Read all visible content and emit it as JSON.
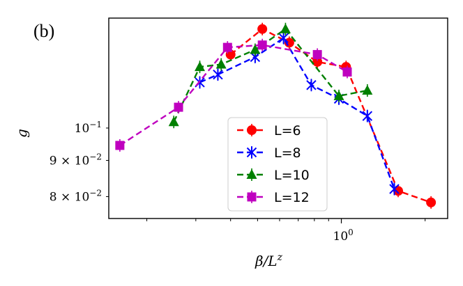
{
  "chart_data": {
    "type": "line",
    "panel_label": "(b)",
    "xlabel": "β/L",
    "xlabel_sup": "z",
    "ylabel": "g",
    "xscale": "log",
    "yscale": "log",
    "xlim": [
      0.146,
      2.41
    ],
    "ylim": [
      0.0745,
      0.143
    ],
    "x_ticks": [
      {
        "value": 1.0,
        "label": "10",
        "sup": "0"
      }
    ],
    "y_ticks": [
      {
        "value": 0.1,
        "mantissa": "",
        "label": "10",
        "sup": "−1"
      },
      {
        "value": 0.09,
        "mantissa": "9 × ",
        "label": "10",
        "sup": "−2"
      },
      {
        "value": 0.08,
        "mantissa": "8 × ",
        "label": "10",
        "sup": "−2"
      }
    ],
    "grid": false,
    "legend_position": "center-bottom",
    "series": [
      {
        "name": "L=6",
        "color": "#ff0000",
        "marker": "circle",
        "x": [
          0.4,
          0.52,
          0.65,
          0.82,
          1.04,
          1.6,
          2.1
        ],
        "y": [
          0.127,
          0.138,
          0.132,
          0.124,
          0.122,
          0.0815,
          0.0785
        ]
      },
      {
        "name": "L=8",
        "color": "#0000ff",
        "marker": "x",
        "x": [
          0.31,
          0.36,
          0.49,
          0.62,
          0.78,
          0.98,
          1.24,
          1.55
        ],
        "y": [
          0.116,
          0.119,
          0.126,
          0.134,
          0.115,
          0.11,
          0.104,
          0.082
        ]
      },
      {
        "name": "L=10",
        "color": "#008000",
        "marker": "triangle",
        "x": [
          0.25,
          0.31,
          0.37,
          0.49,
          0.63,
          0.98,
          1.24
        ],
        "y": [
          0.102,
          0.122,
          0.123,
          0.129,
          0.138,
          0.111,
          0.113
        ]
      },
      {
        "name": "L=12",
        "color": "#bf00bf",
        "marker": "square",
        "x": [
          0.16,
          0.26,
          0.39,
          0.52,
          0.82,
          1.05
        ],
        "y": [
          0.0945,
          0.107,
          0.13,
          0.131,
          0.127,
          0.12
        ]
      }
    ]
  }
}
